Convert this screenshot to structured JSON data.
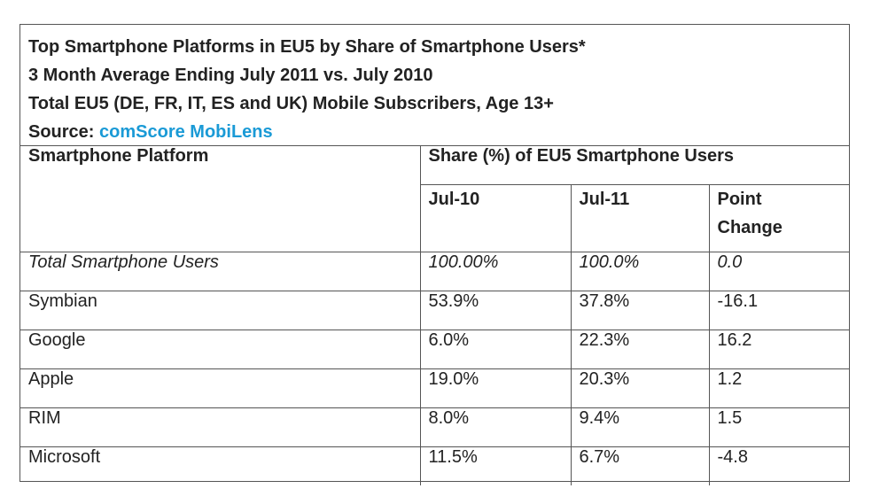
{
  "header": {
    "title": "Top Smartphone Platforms in EU5 by Share of Smartphone Users*",
    "subtitle1": "3 Month Average Ending July 2011 vs. July 2010",
    "subtitle2": "Total EU5 (DE, FR, IT, ES and UK) Mobile Subscribers, Age 13+",
    "source_label": "Source:",
    "source_name": "comScore MobiLens"
  },
  "table": {
    "col_platform": "Smartphone Platform",
    "col_share_group": "Share (%) of EU5 Smartphone Users",
    "col_jul10": "Jul-10",
    "col_jul11": "Jul-11",
    "col_change_line1": "Point",
    "col_change_line2": "Change",
    "rows": [
      {
        "platform": "Total Smartphone Users",
        "jul10": "100.00%",
        "jul11": "100.0%",
        "change": "0.0"
      },
      {
        "platform": "Symbian",
        "jul10": "53.9%",
        "jul11": "37.8%",
        "change": "-16.1"
      },
      {
        "platform": "Google",
        "jul10": "6.0%",
        "jul11": "22.3%",
        "change": "16.2"
      },
      {
        "platform": "Apple",
        "jul10": "19.0%",
        "jul11": "20.3%",
        "change": "1.2"
      },
      {
        "platform": "RIM",
        "jul10": "8.0%",
        "jul11": "9.4%",
        "change": "1.5"
      },
      {
        "platform": "Microsoft",
        "jul10": "11.5%",
        "jul11": "6.7%",
        "change": "-4.8"
      }
    ]
  }
}
